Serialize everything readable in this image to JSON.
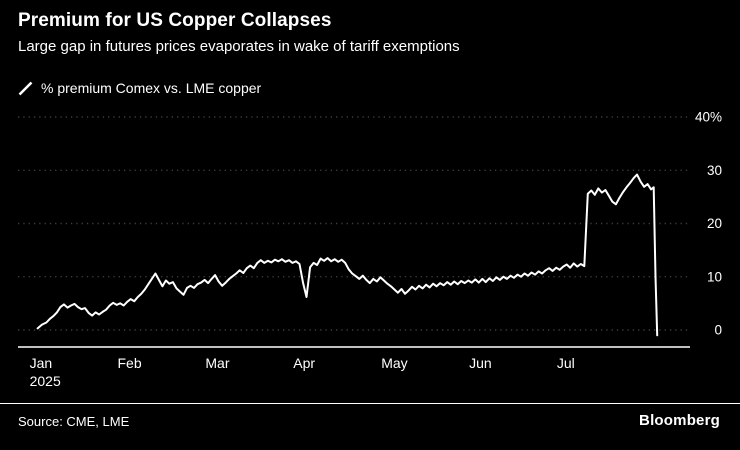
{
  "header": {
    "title": "Premium for US Copper Collapses",
    "subtitle": "Large gap in futures prices evaporates in wake of tariff exemptions"
  },
  "legend": {
    "label": "% premium Comex vs. LME copper"
  },
  "footer": {
    "source": "Source: CME, LME",
    "brand": "Bloomberg"
  },
  "chart_data": {
    "type": "line",
    "title": "Premium for US Copper Collapses",
    "subtitle": "Large gap in futures prices evaporates in wake of tariff exemptions",
    "colors": {
      "background": "#000000",
      "line": "#ffffff",
      "grid": "#3d3d3d",
      "text": "#ffffff"
    },
    "xlim": [
      -0.2,
      7.4
    ],
    "ylim": [
      -3.2,
      43.2
    ],
    "x_tick_positions": [
      0,
      1,
      2,
      3,
      4,
      5,
      6
    ],
    "x_tick_labels": [
      "Jan",
      "Feb",
      "Mar",
      "Apr",
      "May",
      "Jun",
      "Jul"
    ],
    "x_tick_sublabels": [
      "2025",
      "",
      "",
      "",
      "",
      "",
      ""
    ],
    "y_ticks": [
      40,
      30,
      20,
      10,
      0
    ],
    "y_tick_labels": [
      "40%",
      "30",
      "20",
      "10",
      "0"
    ],
    "grid": "dotted-horizontal",
    "legend_position": "top-left",
    "series": [
      {
        "name": "% premium Comex vs. LME copper",
        "color": "#ffffff",
        "points": [
          [
            0.0,
            0.3
          ],
          [
            0.05,
            1.0
          ],
          [
            0.1,
            1.4
          ],
          [
            0.14,
            2.1
          ],
          [
            0.18,
            2.6
          ],
          [
            0.22,
            3.3
          ],
          [
            0.26,
            4.3
          ],
          [
            0.3,
            4.8
          ],
          [
            0.34,
            4.2
          ],
          [
            0.38,
            4.6
          ],
          [
            0.42,
            4.9
          ],
          [
            0.46,
            4.3
          ],
          [
            0.5,
            3.9
          ],
          [
            0.54,
            4.1
          ],
          [
            0.58,
            3.2
          ],
          [
            0.62,
            2.7
          ],
          [
            0.66,
            3.3
          ],
          [
            0.7,
            2.9
          ],
          [
            0.74,
            3.4
          ],
          [
            0.78,
            3.8
          ],
          [
            0.82,
            4.6
          ],
          [
            0.86,
            5.1
          ],
          [
            0.9,
            4.7
          ],
          [
            0.94,
            5.0
          ],
          [
            0.98,
            4.6
          ],
          [
            1.02,
            5.3
          ],
          [
            1.06,
            5.8
          ],
          [
            1.1,
            5.4
          ],
          [
            1.14,
            6.2
          ],
          [
            1.18,
            6.8
          ],
          [
            1.22,
            7.6
          ],
          [
            1.26,
            8.6
          ],
          [
            1.3,
            9.6
          ],
          [
            1.34,
            10.6
          ],
          [
            1.38,
            9.4
          ],
          [
            1.42,
            8.2
          ],
          [
            1.46,
            9.3
          ],
          [
            1.5,
            8.7
          ],
          [
            1.54,
            9.0
          ],
          [
            1.58,
            7.8
          ],
          [
            1.62,
            7.2
          ],
          [
            1.66,
            6.6
          ],
          [
            1.7,
            7.9
          ],
          [
            1.74,
            8.3
          ],
          [
            1.78,
            7.9
          ],
          [
            1.82,
            8.6
          ],
          [
            1.86,
            8.9
          ],
          [
            1.9,
            9.4
          ],
          [
            1.94,
            8.8
          ],
          [
            1.98,
            9.6
          ],
          [
            2.02,
            10.3
          ],
          [
            2.06,
            9.1
          ],
          [
            2.1,
            8.3
          ],
          [
            2.14,
            8.9
          ],
          [
            2.18,
            9.6
          ],
          [
            2.22,
            10.1
          ],
          [
            2.26,
            10.6
          ],
          [
            2.3,
            11.2
          ],
          [
            2.34,
            10.7
          ],
          [
            2.38,
            11.6
          ],
          [
            2.42,
            12.1
          ],
          [
            2.46,
            11.6
          ],
          [
            2.5,
            12.6
          ],
          [
            2.54,
            13.1
          ],
          [
            2.58,
            12.6
          ],
          [
            2.62,
            13.0
          ],
          [
            2.66,
            12.7
          ],
          [
            2.7,
            13.2
          ],
          [
            2.74,
            12.9
          ],
          [
            2.78,
            13.3
          ],
          [
            2.82,
            12.8
          ],
          [
            2.86,
            13.1
          ],
          [
            2.9,
            12.6
          ],
          [
            2.94,
            12.9
          ],
          [
            2.98,
            12.4
          ],
          [
            3.02,
            8.9
          ],
          [
            3.06,
            6.2
          ],
          [
            3.1,
            11.8
          ],
          [
            3.14,
            12.6
          ],
          [
            3.18,
            12.2
          ],
          [
            3.22,
            13.4
          ],
          [
            3.26,
            13.0
          ],
          [
            3.3,
            13.5
          ],
          [
            3.34,
            12.9
          ],
          [
            3.38,
            13.3
          ],
          [
            3.42,
            12.8
          ],
          [
            3.46,
            13.2
          ],
          [
            3.5,
            12.6
          ],
          [
            3.54,
            11.4
          ],
          [
            3.58,
            10.6
          ],
          [
            3.62,
            10.1
          ],
          [
            3.66,
            9.6
          ],
          [
            3.7,
            10.2
          ],
          [
            3.74,
            9.4
          ],
          [
            3.78,
            8.8
          ],
          [
            3.82,
            9.6
          ],
          [
            3.86,
            9.1
          ],
          [
            3.9,
            9.9
          ],
          [
            3.94,
            9.3
          ],
          [
            3.98,
            8.7
          ],
          [
            4.02,
            8.2
          ],
          [
            4.06,
            7.6
          ],
          [
            4.1,
            7.0
          ],
          [
            4.14,
            7.7
          ],
          [
            4.18,
            6.8
          ],
          [
            4.22,
            7.4
          ],
          [
            4.26,
            8.1
          ],
          [
            4.3,
            7.6
          ],
          [
            4.34,
            8.3
          ],
          [
            4.38,
            7.8
          ],
          [
            4.42,
            8.5
          ],
          [
            4.46,
            8.0
          ],
          [
            4.5,
            8.7
          ],
          [
            4.54,
            8.2
          ],
          [
            4.58,
            8.8
          ],
          [
            4.62,
            8.4
          ],
          [
            4.66,
            9.0
          ],
          [
            4.7,
            8.5
          ],
          [
            4.74,
            9.1
          ],
          [
            4.78,
            8.6
          ],
          [
            4.82,
            9.2
          ],
          [
            4.86,
            8.8
          ],
          [
            4.9,
            9.3
          ],
          [
            4.94,
            8.9
          ],
          [
            4.98,
            9.5
          ],
          [
            5.02,
            8.9
          ],
          [
            5.06,
            9.6
          ],
          [
            5.1,
            9.0
          ],
          [
            5.14,
            9.7
          ],
          [
            5.18,
            9.2
          ],
          [
            5.22,
            9.9
          ],
          [
            5.26,
            9.4
          ],
          [
            5.3,
            10.0
          ],
          [
            5.34,
            9.6
          ],
          [
            5.38,
            10.2
          ],
          [
            5.42,
            9.8
          ],
          [
            5.46,
            10.4
          ],
          [
            5.5,
            10.0
          ],
          [
            5.54,
            10.6
          ],
          [
            5.58,
            10.2
          ],
          [
            5.62,
            10.8
          ],
          [
            5.66,
            10.4
          ],
          [
            5.7,
            11.0
          ],
          [
            5.74,
            10.6
          ],
          [
            5.78,
            11.2
          ],
          [
            5.82,
            11.6
          ],
          [
            5.86,
            11.1
          ],
          [
            5.9,
            11.7
          ],
          [
            5.94,
            11.3
          ],
          [
            5.98,
            11.9
          ],
          [
            6.02,
            12.3
          ],
          [
            6.06,
            11.7
          ],
          [
            6.1,
            12.5
          ],
          [
            6.14,
            11.9
          ],
          [
            6.18,
            12.4
          ],
          [
            6.22,
            12.0
          ],
          [
            6.26,
            25.6
          ],
          [
            6.3,
            26.2
          ],
          [
            6.34,
            25.4
          ],
          [
            6.38,
            26.6
          ],
          [
            6.42,
            25.8
          ],
          [
            6.46,
            26.3
          ],
          [
            6.5,
            25.2
          ],
          [
            6.54,
            24.1
          ],
          [
            6.58,
            23.6
          ],
          [
            6.62,
            24.8
          ],
          [
            6.66,
            25.9
          ],
          [
            6.7,
            26.8
          ],
          [
            6.74,
            27.6
          ],
          [
            6.78,
            28.5
          ],
          [
            6.82,
            29.2
          ],
          [
            6.86,
            27.9
          ],
          [
            6.9,
            26.9
          ],
          [
            6.94,
            27.4
          ],
          [
            6.98,
            26.4
          ],
          [
            7.01,
            26.8
          ],
          [
            7.03,
            10.0
          ],
          [
            7.05,
            -1.0
          ]
        ]
      }
    ]
  }
}
